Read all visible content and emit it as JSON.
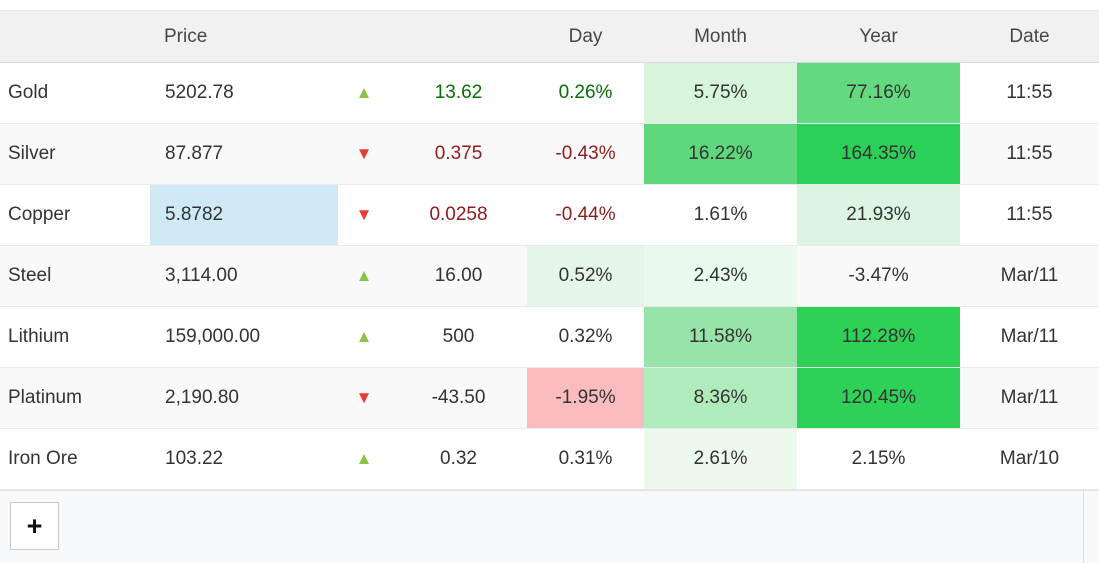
{
  "table": {
    "headers": {
      "name": "",
      "price": "Price",
      "arrow": "",
      "change": "",
      "day": "Day",
      "month": "Month",
      "year": "Year",
      "date": "Date"
    },
    "rows": [
      {
        "name": "Gold",
        "price": "5202.78",
        "direction": "up",
        "change": "13.62",
        "change_color": "positive",
        "day": {
          "text": "0.26%",
          "color": "positive"
        },
        "month": {
          "text": "5.75%",
          "bg": "#d7f4dc"
        },
        "year": {
          "text": "77.16%",
          "bg": "#63da80"
        },
        "date": "11:55"
      },
      {
        "name": "Silver",
        "price": "87.877",
        "direction": "down",
        "change": "0.375",
        "change_color": "negative",
        "day": {
          "text": "-0.43%",
          "color": "negative"
        },
        "month": {
          "text": "16.22%",
          "bg": "#5fd87d"
        },
        "year": {
          "text": "164.35%",
          "bg": "#2bd058"
        },
        "date": "11:55"
      },
      {
        "name": "Copper",
        "price": "5.8782",
        "price_bg": "#cfe9f7",
        "direction": "down",
        "change": "0.0258",
        "change_color": "negative",
        "day": {
          "text": "-0.44%",
          "color": "negative"
        },
        "month": {
          "text": "1.61%"
        },
        "year": {
          "text": "21.93%",
          "bg": "#dbf5e0"
        },
        "date": "11:55"
      },
      {
        "name": "Steel",
        "price": "3,114.00",
        "direction": "up",
        "change": "16.00",
        "day": {
          "text": "0.52%",
          "bg": "#e6f5e9"
        },
        "month": {
          "text": "2.43%",
          "bg": "#eaf9ed"
        },
        "year": {
          "text": "-3.47%"
        },
        "date": "Mar/11"
      },
      {
        "name": "Lithium",
        "price": "159,000.00",
        "direction": "up",
        "change": "500",
        "day": {
          "text": "0.32%"
        },
        "month": {
          "text": "11.58%",
          "bg": "#98e4a8"
        },
        "year": {
          "text": "112.28%",
          "bg": "#2dd156"
        },
        "date": "Mar/11"
      },
      {
        "name": "Platinum",
        "price": "2,190.80",
        "direction": "down",
        "change": "-43.50",
        "day": {
          "text": "-1.95%",
          "bg": "#fbbcc0"
        },
        "month": {
          "text": "8.36%",
          "bg": "#b0ebbc"
        },
        "year": {
          "text": "120.45%",
          "bg": "#2ed157"
        },
        "date": "Mar/11"
      },
      {
        "name": "Iron Ore",
        "price": "103.22",
        "direction": "up",
        "change": "0.32",
        "day": {
          "text": "0.31%"
        },
        "month": {
          "text": "2.61%",
          "bg": "#ecfaee"
        },
        "year": {
          "text": "2.15%"
        },
        "date": "Mar/10"
      }
    ]
  },
  "icons": {
    "up": "▲",
    "down": "▼"
  },
  "colors": {
    "up_arrow": "#8bc34a",
    "down_arrow": "#e83a30",
    "positive_text": "#056e05",
    "negative_text": "#8e1b1b",
    "selection_blue": "#cfe9f7"
  },
  "footer": {
    "add_button_label": "+"
  }
}
